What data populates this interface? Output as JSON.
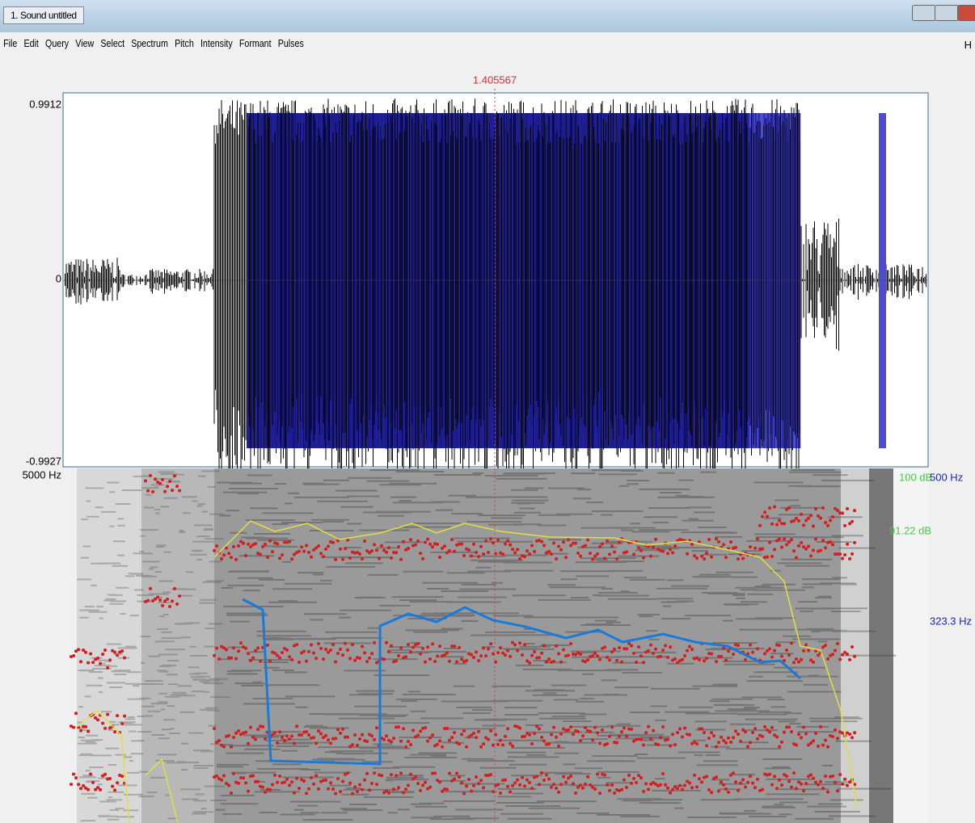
{
  "window": {
    "title": "1. Sound untitled"
  },
  "menu": [
    "File",
    "Edit",
    "Query",
    "View",
    "Select",
    "Spectrum",
    "Pitch",
    "Intensity",
    "Formant",
    "Pulses"
  ],
  "menu_right": "H",
  "cursor_time": "1.405567",
  "waveform": {
    "top_label": "0.9912",
    "zero_label": "0",
    "bottom_label": "-0.9927"
  },
  "spectrogram": {
    "top_label": "5000 Hz",
    "intensity_top": "100 dB",
    "pitch_top": "500 Hz",
    "intensity_value": "91.22 dB",
    "pitch_value": "323.3 Hz"
  }
}
